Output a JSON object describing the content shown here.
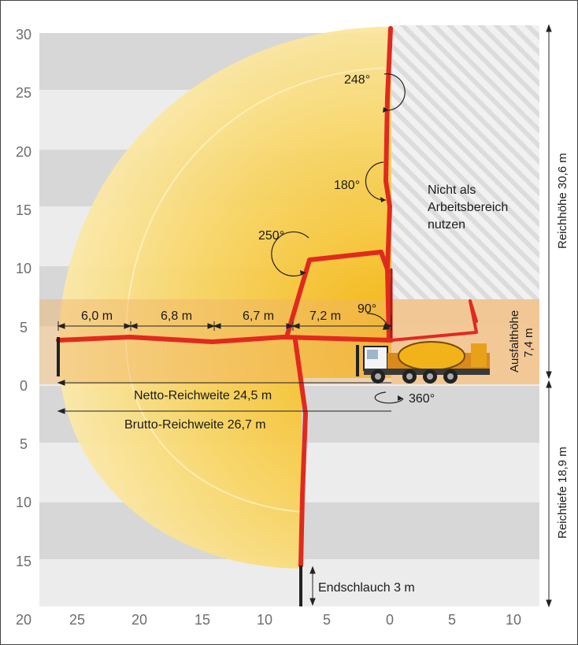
{
  "y_axis_labels": [
    "30",
    "25",
    "20",
    "15",
    "10",
    "5",
    "0",
    "5",
    "10",
    "15",
    "20"
  ],
  "x_axis_labels": [
    "25",
    "20",
    "15",
    "10",
    "5",
    "0",
    "5",
    "10"
  ],
  "segments": [
    "6,0 m",
    "6,8 m",
    "6,7 m",
    "7,2 m"
  ],
  "angles": [
    "248°",
    "180°",
    "250°",
    "90°",
    "360°"
  ],
  "no_work_zone": [
    "Nicht als",
    "Arbeitsbereich",
    "nutzen"
  ],
  "outrigger_height": [
    "Ausfalthöhe",
    "7,4 m"
  ],
  "net_reach": "Netto-Reichweite 24,5 m",
  "gross_reach": "Brutto-Reichweite 26,7 m",
  "end_hose": "Endschlauch 3 m",
  "reach_height": "Reichhöhe 30,6 m",
  "reach_depth": "Reichtiefe 18,9 m",
  "colors": {
    "boom": "#e02a1f",
    "envelope": "#f5c534",
    "outrigger_band": "#f2c48a",
    "stripe_dark": "#d4d4d4",
    "stripe_light": "#ececec"
  }
}
